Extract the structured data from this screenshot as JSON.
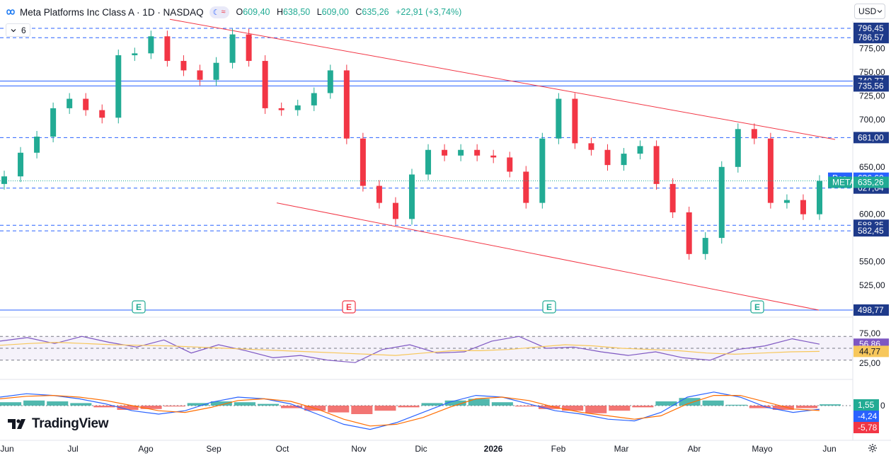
{
  "header": {
    "title": "Meta Platforms Inc Class A · 1D · NASDAQ",
    "open_label": "O",
    "open_value": "609,40",
    "high_label": "H",
    "high_value": "638,50",
    "low_label": "L",
    "low_value": "609,00",
    "close_label": "C",
    "close_value": "635,26",
    "change": "+22,91 (+3,74%)",
    "currency": "USD",
    "indicator_count": "6",
    "logo_icon": "meta-infinity-icon",
    "colors": {
      "up": "#22ab94",
      "down": "#f23645",
      "accent": "#2962ff",
      "rsi": "#7e57c2"
    }
  },
  "brand": "TradingView",
  "chart_data": [
    {
      "type": "candlestick",
      "title": "Meta Platforms Inc Class A · 1D · NASDAQ",
      "ylim": [
        498.77,
        796.45
      ],
      "y_ticks": [
        775,
        750,
        725,
        700,
        650,
        600,
        550,
        525
      ],
      "y_tick_labels": [
        "775,00",
        "750,00",
        "725,00",
        "700,00",
        "650,00",
        "600,00",
        "550,00",
        "525,00"
      ],
      "x_labels": [
        "Jun",
        "Jul",
        "Ago",
        "Sep",
        "Oct",
        "Nov",
        "Dic",
        "2026",
        "Feb",
        "Mar",
        "Abr",
        "Mayo",
        "Jun"
      ],
      "close_path": [
        [
          "Jun",
          640
        ],
        [
          "",
          665
        ],
        [
          "",
          682
        ],
        [
          "Jul",
          712
        ],
        [
          "",
          722
        ],
        [
          "",
          710
        ],
        [
          "",
          702
        ],
        [
          "Ago",
          768
        ],
        [
          "",
          770
        ],
        [
          "",
          788
        ],
        [
          "",
          762
        ],
        [
          "Sep",
          752
        ],
        [
          "",
          742
        ],
        [
          "",
          760
        ],
        [
          "",
          790
        ],
        [
          "",
          762
        ],
        [
          "Oct",
          712
        ],
        [
          "",
          710
        ],
        [
          "",
          715
        ],
        [
          "",
          728
        ],
        [
          "",
          752
        ],
        [
          "Nov",
          680
        ],
        [
          "",
          630
        ],
        [
          "",
          612
        ],
        [
          "",
          595
        ],
        [
          "Dic",
          642
        ],
        [
          "",
          668
        ],
        [
          "",
          662
        ],
        [
          "",
          668
        ],
        [
          "",
          662
        ],
        [
          "2026",
          660
        ],
        [
          "",
          645
        ],
        [
          "",
          612
        ],
        [
          "",
          680
        ],
        [
          "Feb",
          722
        ],
        [
          "",
          675
        ],
        [
          "",
          668
        ],
        [
          "",
          652
        ],
        [
          "Mar",
          664
        ],
        [
          "",
          672
        ],
        [
          "",
          632
        ],
        [
          "",
          602
        ],
        [
          "Abr",
          558
        ],
        [
          "",
          575
        ],
        [
          "",
          650
        ],
        [
          "",
          690
        ],
        [
          "",
          680
        ],
        [
          "Mayo",
          612
        ],
        [
          "",
          615
        ],
        [
          "",
          600
        ],
        [
          "",
          635.26
        ]
      ],
      "price_levels": [
        {
          "label": "796,45",
          "value": 796.45,
          "style": "dashed",
          "color": "#2962ff"
        },
        {
          "label": "786,57",
          "value": 786.57,
          "style": "dashed",
          "color": "#2962ff"
        },
        {
          "label": "740,77",
          "value": 740.77,
          "style": "solid",
          "color": "#2962ff"
        },
        {
          "label": "735,56",
          "value": 735.56,
          "style": "solid",
          "color": "#2962ff"
        },
        {
          "label": "681,00",
          "value": 681.0,
          "style": "dashed",
          "color": "#2962ff"
        },
        {
          "label": "627,64",
          "value": 627.64,
          "style": "dashed",
          "color": "#2962ff"
        },
        {
          "label": "588,35",
          "value": 588.35,
          "style": "dashed",
          "color": "#2962ff"
        },
        {
          "label": "582,45",
          "value": 582.45,
          "style": "dashed",
          "color": "#2962ff"
        },
        {
          "label": "498,77",
          "value": 498.77,
          "style": "solid",
          "color": "#2962ff"
        }
      ],
      "markers": [
        {
          "label": "Pos",
          "value": "636,60"
        },
        {
          "label": "META",
          "value": "635,26"
        }
      ],
      "trendlines": [
        {
          "from": [
            "Ago",
            806
          ],
          "to": [
            "Jun",
            679
          ]
        },
        {
          "from": [
            "Oct",
            612
          ],
          "to": [
            "Mayo",
            498.77
          ]
        }
      ],
      "earnings_flags": [
        {
          "label": "E",
          "at": "Ago",
          "color": "#22ab94"
        },
        {
          "label": "E",
          "at": "Nov",
          "color": "#f23645"
        },
        {
          "label": "E",
          "at": "Feb",
          "color": "#22ab94"
        },
        {
          "label": "E",
          "at": "Mayo",
          "color": "#22ab94"
        }
      ]
    },
    {
      "type": "line",
      "title": "RSI",
      "ylim": [
        0,
        100
      ],
      "y_tick_labels": [
        "75,00",
        "25,00"
      ],
      "bands": [
        70,
        50,
        30
      ],
      "series": [
        {
          "values": [
            62,
            68,
            58,
            70,
            60,
            52,
            64,
            42,
            56,
            46,
            34,
            38,
            30,
            26,
            48,
            56,
            42,
            44,
            62,
            70,
            50,
            52,
            44,
            38,
            44,
            34,
            30,
            48,
            54,
            66,
            56.86
          ]
        },
        {
          "values": [
            55,
            58,
            60,
            58,
            56,
            55,
            54,
            52,
            50,
            48,
            46,
            44,
            42,
            40,
            38,
            42,
            46,
            46,
            48,
            52,
            56,
            54,
            50,
            48,
            46,
            42,
            40,
            42,
            44,
            44.77
          ]
        }
      ],
      "value_labels": [
        "56,86",
        "44,77"
      ]
    },
    {
      "type": "bar",
      "title": "MACD",
      "value_labels": [
        "1,55",
        "-4,24",
        "-5,78"
      ],
      "series": [
        {
          "values": [
            4,
            6,
            5,
            3,
            -2,
            -5,
            -4,
            -1,
            3,
            5,
            4,
            2,
            -3,
            -6,
            -8,
            -10,
            -6,
            -2,
            3,
            6,
            8,
            4,
            -1,
            -4,
            -6,
            -9,
            -6,
            -2,
            5,
            9,
            6,
            1,
            -3,
            -5,
            -3,
            1.55
          ]
        },
        {
          "values": [
            10,
            14,
            12,
            8,
            2,
            -6,
            -10,
            -6,
            4,
            10,
            8,
            2,
            -10,
            -22,
            -28,
            -20,
            -8,
            4,
            12,
            10,
            2,
            -6,
            -10,
            -16,
            -18,
            -8,
            10,
            16,
            10,
            -2,
            -8,
            -4.24
          ]
        },
        {
          "values": [
            8,
            11,
            12,
            10,
            6,
            0,
            -6,
            -8,
            -2,
            6,
            8,
            5,
            -4,
            -16,
            -24,
            -22,
            -14,
            -2,
            8,
            10,
            6,
            -2,
            -8,
            -12,
            -16,
            -12,
            2,
            12,
            12,
            4,
            -4,
            -5.78
          ]
        }
      ]
    }
  ]
}
